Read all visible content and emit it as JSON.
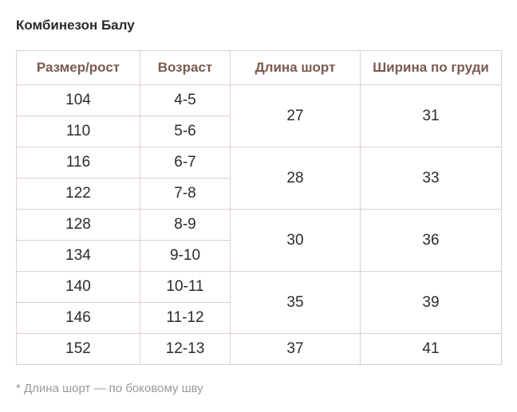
{
  "title": "Комбинезон Балу",
  "table": {
    "headers": [
      "Размер/рост",
      "Возраст",
      "Длина шорт",
      "Ширина по груди"
    ],
    "sizes": [
      "104",
      "110",
      "116",
      "122",
      "128",
      "134",
      "140",
      "146",
      "152"
    ],
    "ages": [
      "4-5",
      "5-6",
      "6-7",
      "7-8",
      "8-9",
      "9-10",
      "10-11",
      "11-12",
      "12-13"
    ],
    "shorts_length": [
      "27",
      "28",
      "30",
      "35",
      "37"
    ],
    "chest_width": [
      "31",
      "33",
      "36",
      "39",
      "41"
    ]
  },
  "note": "* Длина шорт — по боковому шву",
  "colors": {
    "header_text": "#7a5a4e",
    "border": "#dccfcc",
    "body_text": "#2b2b2b",
    "note_text": "#9a9a9a"
  }
}
